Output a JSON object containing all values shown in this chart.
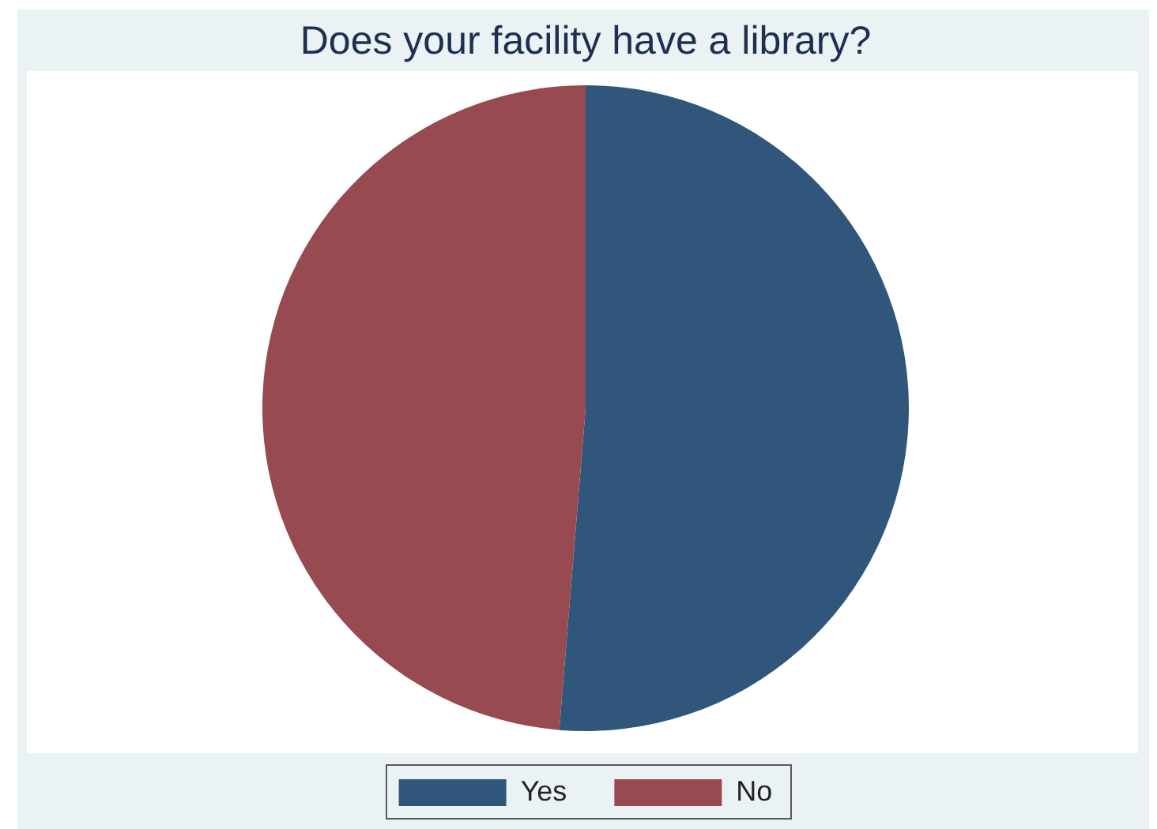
{
  "chart_data": {
    "type": "pie",
    "title": "Does your facility have a library?",
    "categories": [
      "Yes",
      "No"
    ],
    "values": [
      51.3,
      48.7
    ],
    "colors": [
      "#30577b",
      "#974a4f"
    ],
    "legend": "bottom"
  }
}
